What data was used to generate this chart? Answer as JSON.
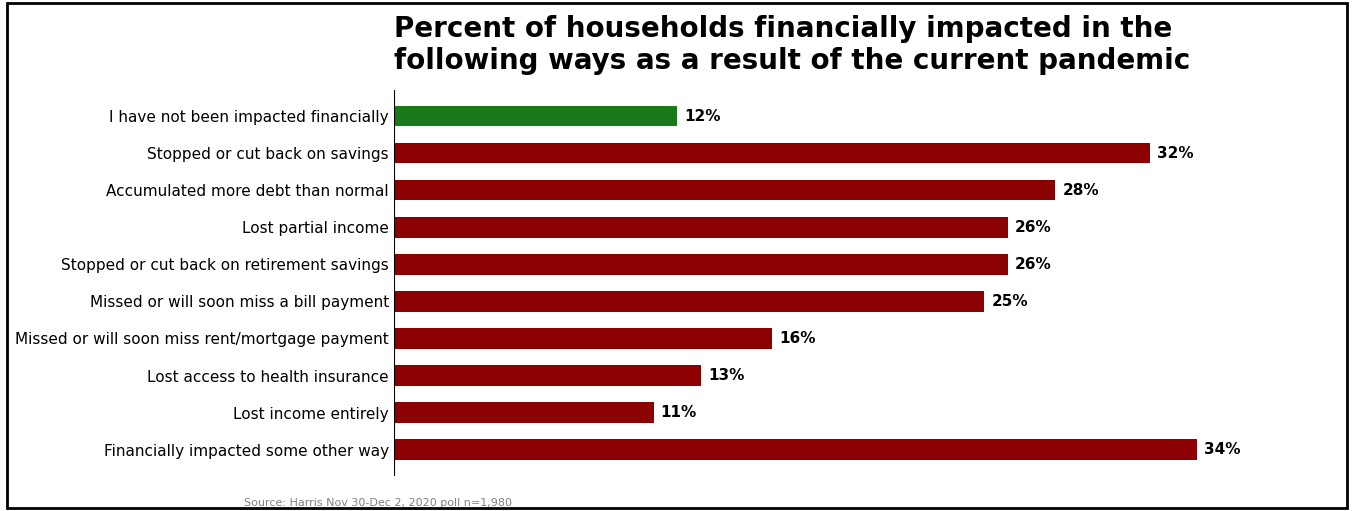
{
  "title": "Percent of households financially impacted in the\nfollowing ways as a result of the current pandemic",
  "categories": [
    "Financially impacted some other way",
    "Lost income entirely",
    "Lost access to health insurance",
    "Missed or will soon miss rent/mortgage payment",
    "Missed or will soon miss a bill payment",
    "Stopped or cut back on retirement savings",
    "Lost partial income",
    "Accumulated more debt than normal",
    "Stopped or cut back on savings",
    "I have not been impacted financially"
  ],
  "values": [
    34,
    11,
    13,
    16,
    25,
    26,
    26,
    28,
    32,
    12
  ],
  "colors": [
    "#8B0000",
    "#8B0000",
    "#8B0000",
    "#8B0000",
    "#8B0000",
    "#8B0000",
    "#8B0000",
    "#8B0000",
    "#8B0000",
    "#1a7a1a"
  ],
  "source_text": "Source: Harris Nov 30-Dec 2, 2020 poll n=1,980",
  "title_fontsize": 20,
  "label_fontsize": 11,
  "value_fontsize": 11,
  "bar_height": 0.55,
  "xlim": [
    0,
    40
  ]
}
